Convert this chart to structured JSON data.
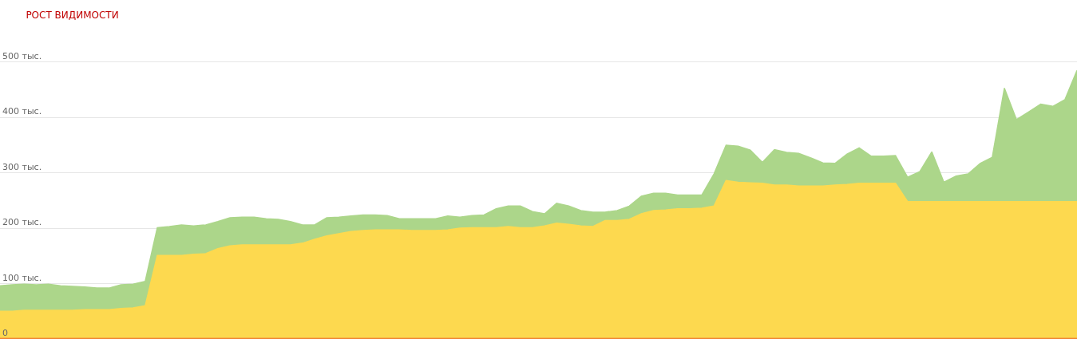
{
  "chart_data": {
    "type": "area",
    "title": "РОСТ ВИДИМОСТИ",
    "stacked": true,
    "grid": "y",
    "categories": [
      null,
      null,
      null,
      null,
      null,
      null,
      null,
      null,
      null,
      null,
      null,
      null,
      null,
      null,
      null,
      null,
      null,
      null,
      null,
      null,
      null,
      null,
      null,
      null,
      null,
      null,
      null,
      null,
      null,
      null,
      null,
      null,
      null,
      null,
      null,
      null,
      null,
      null,
      null,
      null,
      null,
      null,
      null,
      null,
      null,
      null,
      null,
      null,
      null,
      null,
      null,
      null,
      null,
      null,
      null,
      null,
      null,
      null,
      null,
      null,
      null,
      null,
      null,
      null,
      null,
      null,
      null,
      null,
      null,
      null,
      null,
      null,
      null,
      null,
      null,
      null,
      null,
      null,
      null,
      null,
      null,
      null,
      null,
      null,
      null,
      null,
      null,
      null,
      null,
      null
    ],
    "ylim": [
      0,
      612
    ],
    "yticks": [
      {
        "value": 0,
        "label": "0"
      },
      {
        "value": 100,
        "label": "100 тыс."
      },
      {
        "value": 200,
        "label": "200 тыс."
      },
      {
        "value": 300,
        "label": "300 тыс."
      },
      {
        "value": 400,
        "label": "400 тыс."
      },
      {
        "value": 500,
        "label": "500 тыс."
      }
    ],
    "series": [
      {
        "color": "#f08a3c",
        "values": [
          1,
          1,
          1,
          1,
          1,
          1,
          1,
          1,
          1,
          1,
          1,
          1,
          1,
          1,
          1,
          1,
          1,
          1,
          1,
          1,
          1,
          1,
          1,
          1,
          1,
          1,
          1,
          1,
          1,
          1,
          1,
          1,
          1,
          1,
          1,
          1,
          1,
          1,
          1,
          1,
          1,
          1,
          1,
          1,
          1,
          1,
          1,
          1,
          1,
          1,
          1,
          1,
          1,
          1,
          1,
          1,
          1,
          1,
          1,
          1,
          1,
          1,
          1,
          1,
          1,
          1,
          1,
          1,
          1,
          1,
          1,
          1,
          1,
          1,
          1,
          1,
          1,
          1,
          1,
          1,
          1,
          1,
          1,
          1,
          1,
          1,
          1,
          1,
          1,
          1
        ]
      },
      {
        "color": "#fdd94f",
        "values": [
          49,
          49,
          51,
          51,
          51,
          51,
          51,
          52,
          52,
          52,
          54,
          55,
          59,
          150,
          150,
          150,
          152,
          153,
          162,
          167,
          169,
          169,
          169,
          169,
          169,
          172,
          179,
          185,
          189,
          193,
          195,
          196,
          196,
          196,
          195,
          195,
          195,
          196,
          199,
          200,
          200,
          200,
          202,
          200,
          200,
          203,
          208,
          206,
          203,
          202,
          213,
          213,
          215,
          225,
          231,
          232,
          234,
          234,
          235,
          239,
          285,
          282,
          281,
          280,
          277,
          277,
          275,
          275,
          275,
          277,
          278,
          280,
          280,
          280,
          280,
          247,
          247,
          247,
          247,
          247,
          247,
          247,
          247,
          247,
          247,
          247,
          247,
          247,
          247,
          247
        ]
      },
      {
        "color": "#acd68a",
        "values": [
          46,
          48,
          47,
          46,
          47,
          44,
          43,
          41,
          39,
          39,
          43,
          43,
          44,
          50,
          52,
          55,
          51,
          52,
          49,
          51,
          50,
          50,
          47,
          46,
          42,
          33,
          26,
          33,
          30,
          28,
          28,
          27,
          26,
          20,
          21,
          21,
          21,
          25,
          20,
          22,
          23,
          34,
          37,
          39,
          29,
          22,
          36,
          33,
          28,
          26,
          15,
          18,
          24,
          32,
          31,
          30,
          25,
          25,
          24,
          58,
          64,
          65,
          59,
          38,
          64,
          59,
          59,
          51,
          42,
          39,
          55,
          64,
          49,
          49,
          50,
          44,
          54,
          90,
          35,
          46,
          50,
          69,
          80,
          205,
          148,
          162,
          176,
          172,
          184,
          237
        ]
      }
    ]
  }
}
